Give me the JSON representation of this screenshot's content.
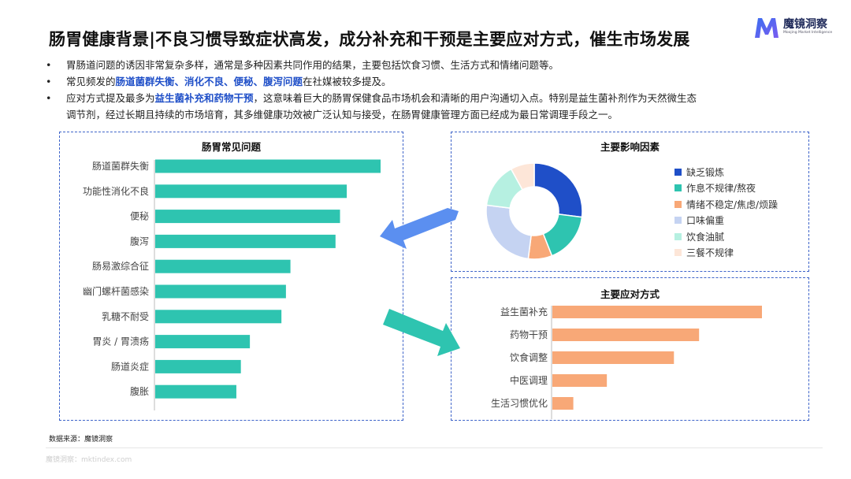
{
  "page": {
    "title": "肠胃健康背景|不良习惯导致症状高发，成分补充和干预是主要应对方式，催生市场发展",
    "logo": {
      "name_cn": "魔镜洞察",
      "name_en": "Moojing Market Intelligence",
      "colors": [
        "#3b6ef0",
        "#7a5cf0"
      ]
    },
    "bullets": [
      {
        "segments": [
          {
            "text": "胃肠道问题的诱因非常复杂多样，通常是多种因素共同作用的结果，主要包括饮食习惯、生活方式和情绪问题等。",
            "highlight": false
          }
        ]
      },
      {
        "segments": [
          {
            "text": "常见频发的",
            "highlight": false
          },
          {
            "text": "肠道菌群失衡、消化不良、便秘、腹泻问题",
            "highlight": true
          },
          {
            "text": "在社媒被较多提及。",
            "highlight": false
          }
        ]
      },
      {
        "segments": [
          {
            "text": "应对方式提及最多为",
            "highlight": false
          },
          {
            "text": "益生菌补充和药物干预",
            "highlight": true
          },
          {
            "text": "，这意味着巨大的肠胃保健食品市场机会和清晰的用户沟通切入点。特别是益生菌补剂作为天然微生态",
            "highlight": false
          }
        ]
      },
      {
        "segments": [
          {
            "text": "调节剂，经过长期且持续的市场培育，其多维健康功效被广泛认知与接受，在肠胃健康管理方面已经成为最日常调理手段之一。",
            "highlight": false
          }
        ]
      }
    ],
    "bullet_symbol": "•",
    "source": "数据来源：魔镜洞察",
    "footer": "魔镜洞察：mktindex.com"
  },
  "colors": {
    "teal": "#2ec4b0",
    "orange": "#f8a877",
    "accent_blue": "#1f4fc8",
    "panel_border": "#3d63c9",
    "arrow_blue": "#5b8ff0",
    "arrow_teal": "#2ec4b0"
  },
  "chart_data": [
    {
      "id": "problems",
      "type": "bar",
      "orientation": "horizontal",
      "title": "肠胃常见问题",
      "color": "#2ec4b0",
      "categories": [
        "肠道菌群失衡",
        "功能性消化不良",
        "便秘",
        "腹泻",
        "肠易激综合征",
        "幽门螺杆菌感染",
        "乳糖不耐受",
        "胃炎 / 胃溃疡",
        "肠道炎症",
        "腹胀"
      ],
      "values": [
        100,
        85,
        82,
        80,
        60,
        58,
        56,
        42,
        38,
        36
      ],
      "xlim": [
        0,
        100
      ],
      "axis_labels_shown": false
    },
    {
      "id": "factors",
      "type": "pie",
      "donut": true,
      "title": "主要影响因素",
      "labels": [
        "缺乏锻炼",
        "作息不规律/熬夜",
        "情绪不稳定/焦虑/烦躁",
        "口味偏重",
        "饮食油腻",
        "三餐不规律"
      ],
      "values": [
        27,
        17,
        8,
        25,
        15,
        8
      ],
      "colors": [
        "#1f4fc8",
        "#2ec4b0",
        "#f8a877",
        "#c5d3f2",
        "#b6f0e1",
        "#fde6d8"
      ],
      "legend_position": "right"
    },
    {
      "id": "responses",
      "type": "bar",
      "orientation": "horizontal",
      "title": "主要应对方式",
      "color": "#f8a877",
      "categories": [
        "益生菌补充",
        "药物干预",
        "饮食调整",
        "中医调理",
        "生活习惯优化"
      ],
      "values": [
        100,
        70,
        58,
        26,
        10
      ],
      "xlim": [
        0,
        100
      ],
      "axis_labels_shown": false
    }
  ]
}
